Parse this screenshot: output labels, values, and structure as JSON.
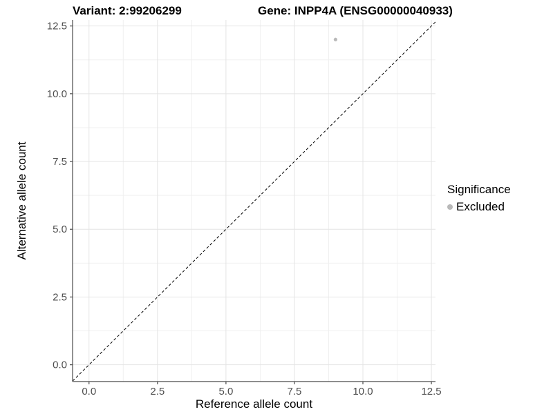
{
  "title": {
    "variant": "Variant: 2:99206299",
    "gene": "Gene: INPP4A (ENSG00000040933)"
  },
  "legend": {
    "title": "Significance",
    "items": [
      {
        "label": "Excluded",
        "color": "#b9b9b9"
      }
    ]
  },
  "chart_data": {
    "type": "scatter",
    "title": "Variant: 2:99206299   Gene: INPP4A (ENSG00000040933)",
    "xlabel": "Reference allele count",
    "ylabel": "Alternative allele count",
    "xlim": [
      -0.6,
      12.65
    ],
    "ylim": [
      -0.62,
      12.72
    ],
    "x_ticks": [
      0,
      2.5,
      5,
      7.5,
      10,
      12.5
    ],
    "x_tick_labels": [
      "0.0",
      "2.5",
      "5.0",
      "7.5",
      "10.0",
      "12.5"
    ],
    "y_ticks": [
      0,
      2.5,
      5,
      7.5,
      10,
      12.5
    ],
    "y_tick_labels": [
      "0.0",
      "2.5",
      "5.0",
      "7.5",
      "10.0",
      "12.5"
    ],
    "minor_ticks_x": [
      1.25,
      3.75,
      6.25,
      8.75,
      11.25
    ],
    "minor_ticks_y": [
      1.25,
      3.75,
      6.25,
      8.75,
      11.25
    ],
    "grid": true,
    "legend_position": "right",
    "series": [
      {
        "name": "Excluded",
        "color": "#b9b9b9",
        "points": [
          {
            "x": 9,
            "y": 12
          }
        ]
      }
    ],
    "reference_line": {
      "slope": 1,
      "intercept": 0,
      "linetype": "dashed",
      "color": "#000000"
    }
  },
  "colors": {
    "background": "#ffffff",
    "grid_major": "#e4e4e4",
    "grid_minor": "#f0f0f0",
    "axis_line": "#4a4a4a",
    "tick_mark": "#4a4a4a",
    "tick_label": "#4d4d4d",
    "point": "#b9b9b9",
    "reference_line": "#000000"
  }
}
